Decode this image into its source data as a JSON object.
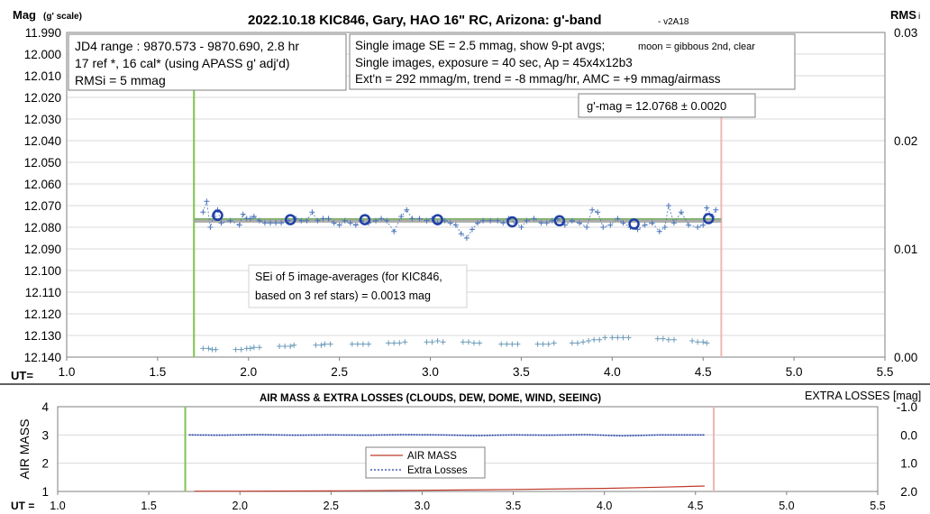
{
  "colors": {
    "axis": "#7f7f7f",
    "data_points": "#4a74b8",
    "averages": "#1f3fa6",
    "fit_line": "#9e9e9e",
    "fit_line_center": "#7ab464",
    "rms_points": "#6a9ab8",
    "start_line": "#7dc451",
    "end_line": "#f2b5b5",
    "air_mass": "#c0392b",
    "extra_losses": "#1f3fa6"
  },
  "chart_data": [
    {
      "type": "scatter",
      "title": "2022.10.18 KIC846, Gary, HAO 16\" RC, Arizona: g'-band",
      "title_suffix": "- v2A18",
      "ylabel": "Mag",
      "ylabel_suffix": "(g' scale)",
      "y2label": "RMS",
      "y2label_suffix": "i",
      "xlabel": "UT=",
      "xlim": [
        1.0,
        5.5
      ],
      "ylim": [
        12.14,
        11.99
      ],
      "y2lim": [
        0.0,
        0.03
      ],
      "y_reversed": true,
      "grid": true,
      "x_ticks": [
        "1.0",
        "1.5",
        "2.0",
        "2.5",
        "3.0",
        "3.5",
        "4.0",
        "4.5",
        "5.0",
        "5.5"
      ],
      "y_ticks": [
        "11.990",
        "12.000",
        "12.010",
        "12.020",
        "12.030",
        "12.040",
        "12.050",
        "12.060",
        "12.070",
        "12.080",
        "12.090",
        "12.100",
        "12.110",
        "12.120",
        "12.130",
        "12.140"
      ],
      "y2_ticks": [
        "0.03",
        "0.02",
        "0.01",
        "0.00"
      ],
      "vertical_markers": {
        "start": 1.7,
        "end": 4.6
      },
      "info_box_left": [
        "JD4 range : 9870.573 - 9870.690,  2.8 hr",
        "17 ref *, 16 cal* (using APASS g' adj'd)",
        "RMSi = 5 mmag"
      ],
      "info_box_right": {
        "line1_main": "Single image SE = 2.5 mmag, show  9-pt avgs;",
        "line1_small": "moon = gibbous 2nd, clear",
        "line2": "Single images, exposure = 40 sec, Ap = 45x4x12b3",
        "line3": "Ext'n = 292 mmag/m, trend = -8 mmag/hr, AMC = +9 mmag/airmass"
      },
      "result_box": "g'-mag = 12.0768 ± 0.0020",
      "sei_box": [
        "SEi of 5 image-averages (for KIC846,",
        "based on 3 ref stars) = 0.0013 mag"
      ],
      "fit_line": {
        "x": [
          1.7,
          4.6
        ],
        "y": 12.0768
      },
      "series": [
        {
          "kind": "single_images",
          "x": [
            1.75,
            1.77,
            1.79,
            1.81,
            1.83,
            1.85,
            1.9,
            1.95,
            1.97,
            1.99,
            2.01,
            2.03,
            2.06,
            2.09,
            2.12,
            2.15,
            2.18,
            2.22,
            2.26,
            2.29,
            2.32,
            2.35,
            2.38,
            2.41,
            2.44,
            2.47,
            2.5,
            2.53,
            2.56,
            2.59,
            2.62,
            2.66,
            2.7,
            2.73,
            2.76,
            2.8,
            2.84,
            2.87,
            2.9,
            2.94,
            2.98,
            3.01,
            3.04,
            3.08,
            3.11,
            3.14,
            3.17,
            3.2,
            3.23,
            3.26,
            3.29,
            3.33,
            3.37,
            3.4,
            3.43,
            3.47,
            3.5,
            3.53,
            3.57,
            3.61,
            3.64,
            3.67,
            3.7,
            3.74,
            3.78,
            3.82,
            3.86,
            3.89,
            3.92,
            3.95,
            3.99,
            4.03,
            4.06,
            4.1,
            4.14,
            4.18,
            4.22,
            4.26,
            4.29,
            4.31,
            4.34,
            4.38,
            4.42,
            4.47,
            4.5,
            4.52,
            4.55,
            4.57
          ],
          "y": [
            12.073,
            12.068,
            12.08,
            12.075,
            12.072,
            12.078,
            12.077,
            12.079,
            12.074,
            12.076,
            12.076,
            12.075,
            12.077,
            12.078,
            12.078,
            12.078,
            12.078,
            12.077,
            12.076,
            12.077,
            12.077,
            12.073,
            12.077,
            12.076,
            12.076,
            12.078,
            12.079,
            12.077,
            12.078,
            12.079,
            12.077,
            12.078,
            12.077,
            12.076,
            12.077,
            12.082,
            12.075,
            12.072,
            12.076,
            12.076,
            12.077,
            12.076,
            12.078,
            12.077,
            12.078,
            12.079,
            12.083,
            12.085,
            12.081,
            12.078,
            12.077,
            12.077,
            12.077,
            12.078,
            12.076,
            12.078,
            12.08,
            12.077,
            12.076,
            12.078,
            12.078,
            12.077,
            12.076,
            12.079,
            12.077,
            12.078,
            12.08,
            12.072,
            12.073,
            12.08,
            12.079,
            12.076,
            12.078,
            12.08,
            12.081,
            12.079,
            12.078,
            12.082,
            12.08,
            12.07,
            12.078,
            12.073,
            12.079,
            12.08,
            12.079,
            12.071,
            12.075,
            12.072
          ]
        },
        {
          "kind": "9pt_averages",
          "x": [
            1.83,
            2.23,
            2.64,
            3.04,
            3.45,
            3.71,
            4.12,
            4.53
          ],
          "y": [
            12.0745,
            12.0765,
            12.0765,
            12.0765,
            12.0775,
            12.077,
            12.0785,
            12.076
          ]
        },
        {
          "kind": "rms",
          "axis": "y2",
          "x": [
            1.75,
            1.78,
            1.8,
            1.82,
            1.93,
            1.96,
            1.99,
            2.01,
            2.03,
            2.06,
            2.17,
            2.2,
            2.23,
            2.25,
            2.37,
            2.4,
            2.42,
            2.45,
            2.57,
            2.6,
            2.63,
            2.66,
            2.77,
            2.8,
            2.83,
            2.86,
            2.98,
            3.01,
            3.04,
            3.07,
            3.18,
            3.21,
            3.24,
            3.27,
            3.39,
            3.42,
            3.45,
            3.48,
            3.59,
            3.62,
            3.65,
            3.68,
            3.78,
            3.81,
            3.84,
            3.87,
            3.9,
            3.93,
            3.96,
            4.0,
            4.03,
            4.06,
            4.09,
            4.25,
            4.28,
            4.31,
            4.34,
            4.44,
            4.47,
            4.5,
            4.52
          ],
          "y": [
            0.0008,
            0.0008,
            0.0007,
            0.0007,
            0.0007,
            0.0007,
            0.0008,
            0.0008,
            0.0009,
            0.0009,
            0.001,
            0.001,
            0.001,
            0.0011,
            0.0011,
            0.0011,
            0.0012,
            0.0012,
            0.0012,
            0.0012,
            0.0012,
            0.0012,
            0.0013,
            0.0013,
            0.0013,
            0.0014,
            0.0014,
            0.0014,
            0.0015,
            0.0014,
            0.0014,
            0.0014,
            0.0013,
            0.0013,
            0.0012,
            0.0012,
            0.0012,
            0.0012,
            0.0012,
            0.0012,
            0.0012,
            0.0013,
            0.0013,
            0.0013,
            0.0014,
            0.0015,
            0.0016,
            0.0016,
            0.0018,
            0.0018,
            0.0018,
            0.0018,
            0.0018,
            0.0017,
            0.0017,
            0.0016,
            0.0016,
            0.0015,
            0.0014,
            0.0014,
            0.0013
          ]
        }
      ]
    },
    {
      "type": "line",
      "title": "AIR MASS & EXTRA LOSSES (CLOUDS, DEW, DOME, WIND, SEEING)",
      "ylabel": "AIR MASS",
      "y2label": "EXTRA LOSSES [mag]",
      "xlabel": "UT =",
      "xlim": [
        1.0,
        5.5
      ],
      "ylim": [
        1,
        4
      ],
      "y2lim": [
        2.0,
        -1.0
      ],
      "x_ticks": [
        "1.0",
        "1.5",
        "2.0",
        "2.5",
        "3.0",
        "3.5",
        "4.0",
        "4.5",
        "5.0",
        "5.5"
      ],
      "y_ticks": [
        "4",
        "3",
        "2",
        "1"
      ],
      "y2_ticks": [
        "-1.0",
        "0.0",
        "1.0",
        "2.0"
      ],
      "vertical_markers": {
        "start": 1.7,
        "end": 4.6
      },
      "legend": {
        "position": "center-bottom",
        "entries": [
          "AIR MASS",
          "Extra Losses"
        ]
      },
      "series": [
        {
          "name": "AIR MASS",
          "x": [
            1.75,
            2.0,
            2.5,
            3.0,
            3.5,
            4.0,
            4.3,
            4.55
          ],
          "y": [
            1.01,
            1.01,
            1.02,
            1.04,
            1.07,
            1.11,
            1.15,
            1.19
          ]
        },
        {
          "name": "Extra Losses",
          "axis": "y2",
          "x": [
            1.72,
            1.9,
            2.1,
            2.3,
            2.5,
            2.7,
            2.9,
            3.1,
            3.3,
            3.5,
            3.7,
            3.9,
            4.1,
            4.3,
            4.55
          ],
          "y": [
            0.0,
            0.01,
            -0.01,
            0.01,
            0.0,
            0.01,
            -0.01,
            0.0,
            0.02,
            0.0,
            0.01,
            -0.01,
            0.03,
            0.0,
            0.0
          ]
        }
      ]
    }
  ]
}
